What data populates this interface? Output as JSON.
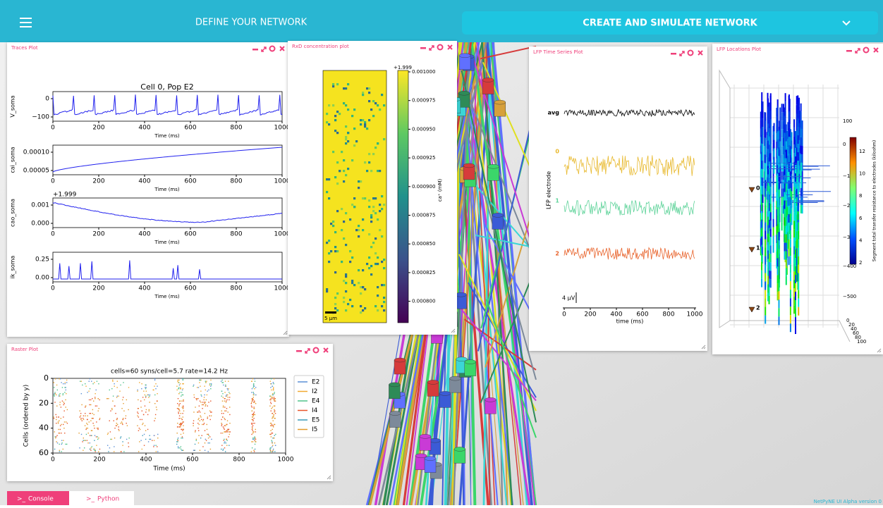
{
  "header": {
    "define": "DEFINE YOUR NETWORK",
    "create": "CREATE AND SIMULATE NETWORK"
  },
  "traces": {
    "title": "Traces Plot",
    "plot_title": "Cell 0, Pop E2",
    "xlabel": "Time (ms)",
    "xticks": [
      "0",
      "200",
      "400",
      "600",
      "800",
      "1000"
    ],
    "subplots": [
      {
        "ylabel": "V_soma",
        "yticks": [
          "0",
          "−100"
        ]
      },
      {
        "ylabel": "cai_soma",
        "yticks": [
          "0.00010",
          "0.00005"
        ]
      },
      {
        "ylabel": "cao_soma",
        "offset": "+1.999",
        "yticks": [
          "0.001",
          "0.000"
        ]
      },
      {
        "ylabel": "ik_soma",
        "yticks": [
          "0.25",
          "0.00"
        ]
      }
    ]
  },
  "rxd": {
    "title": "RxD concentration plot",
    "offset": "+1.999",
    "cticks": [
      "0.001000",
      "0.000975",
      "0.000950",
      "0.000925",
      "0.000900",
      "0.000875",
      "0.000850",
      "0.000825",
      "0.000800"
    ],
    "clabel": "ca⁺ (mM)",
    "scale": "5 μm"
  },
  "lfp_time": {
    "title": "LFP Time Series Plot",
    "ylabel": "LFP electrode",
    "rows": [
      {
        "label": "avg",
        "color": "#000000"
      },
      {
        "label": "0",
        "color": "#e8b92e"
      },
      {
        "label": "1",
        "color": "#5fd39a"
      },
      {
        "label": "2",
        "color": "#e8622a"
      }
    ],
    "scale": "4 μV",
    "xlabel": "time (ms)",
    "xticks": [
      "0",
      "200",
      "400",
      "600",
      "800",
      "1000"
    ]
  },
  "lfp_loc": {
    "title": "LFP Locations Plot",
    "zticks": [
      "100",
      "0",
      "−100",
      "−200",
      "−300",
      "−400",
      "−500"
    ],
    "cticks": [
      "12",
      "10",
      "8",
      "6",
      "4",
      "2"
    ],
    "clabel": "Segment total transfer resistance to electrodes (kiloohm)",
    "electrodes": [
      "0",
      "1",
      "2"
    ],
    "depth_ticks": [
      "0",
      "20",
      "40",
      "60",
      "80",
      "100"
    ]
  },
  "raster": {
    "title": "Raster Plot",
    "plot_title": "cells=60 syns/cell=5.7 rate=14.2 Hz",
    "ylabel": "Cells (ordered by y)",
    "xlabel": "Time (ms)",
    "xticks": [
      "0",
      "200",
      "400",
      "600",
      "800",
      "1000"
    ],
    "yticks": [
      "0",
      "20",
      "40",
      "60"
    ],
    "legend": [
      {
        "name": "E2",
        "color": "#5b8fd6"
      },
      {
        "name": "I2",
        "color": "#f0a830"
      },
      {
        "name": "E4",
        "color": "#4fc28a"
      },
      {
        "name": "I4",
        "color": "#e8552a"
      },
      {
        "name": "E5",
        "color": "#3a9ab8"
      },
      {
        "name": "I5",
        "color": "#e39a2a"
      }
    ]
  },
  "footer": {
    "prompt": ">_",
    "console": "Console",
    "python": "Python",
    "version": "NetPyNE UI Alpha version 0"
  }
}
